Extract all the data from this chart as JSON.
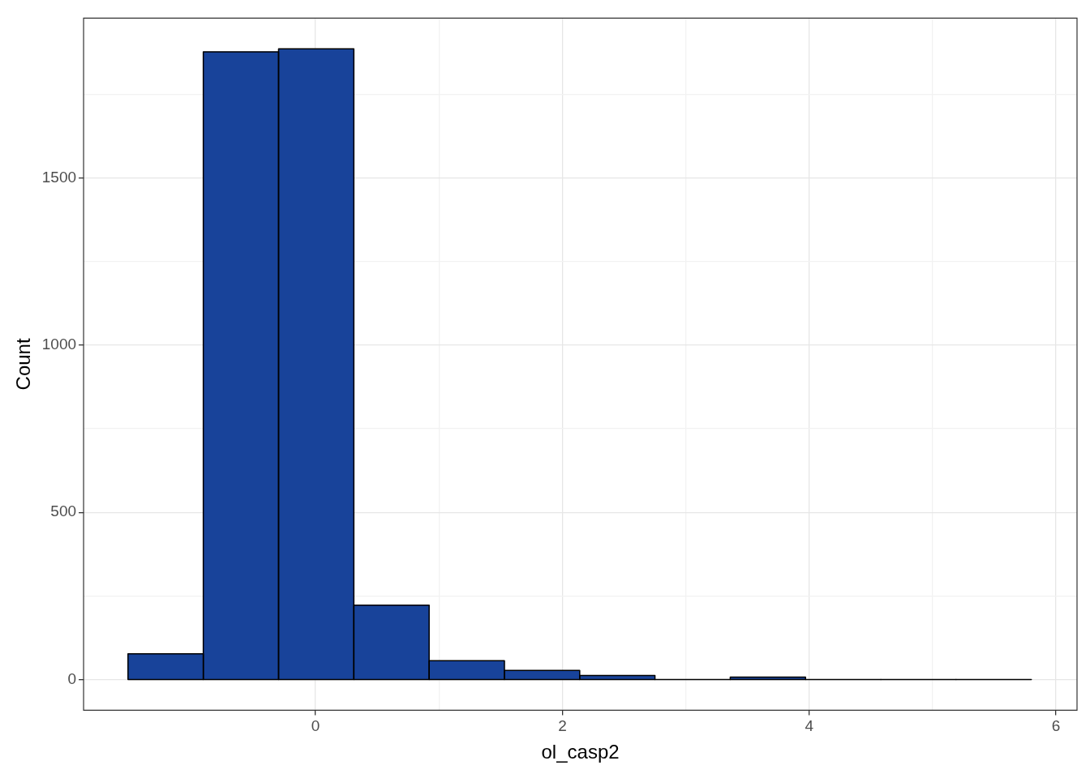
{
  "chart_data": {
    "type": "histogram",
    "xlabel": "ol_casp2",
    "ylabel": "Count",
    "color": "#18439a",
    "bins": [
      -1.52,
      -0.91,
      -0.3,
      0.31,
      0.92,
      1.53,
      2.14,
      2.75,
      3.36,
      3.97,
      4.58,
      5.19,
      5.8
    ],
    "values": [
      77,
      1877,
      1886,
      222,
      56,
      27,
      12,
      0,
      7,
      0,
      0,
      0
    ],
    "xlim": [
      -1.88,
      6.17
    ],
    "ylim": [
      -92,
      1978
    ],
    "xticks": [
      0,
      {
        "value": 1,
        "label": null
      },
      2,
      {
        "value": 3,
        "label": null
      },
      4,
      {
        "value": 5,
        "label": null
      },
      6
    ],
    "yticks": [
      0,
      {
        "value": 250,
        "label": null
      },
      500,
      {
        "value": 750,
        "label": null
      },
      1000,
      {
        "value": 1250,
        "label": null
      },
      1500,
      {
        "value": 1750,
        "label": null
      }
    ],
    "grid": true,
    "legend": false
  }
}
